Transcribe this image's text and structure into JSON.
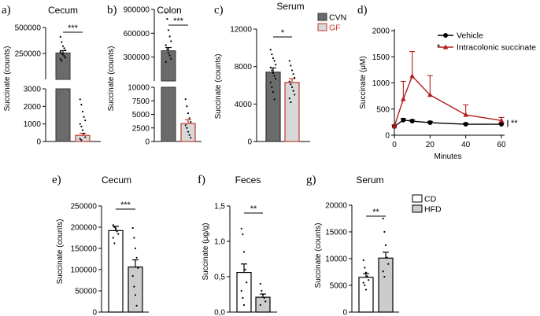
{
  "colors": {
    "cvn": "#6b6b6b",
    "gf": "#d8d8d8",
    "gf_border": "#c0392b",
    "cd": "#ffffff",
    "hfd": "#cccccc",
    "vehicle": "#000000",
    "intracolonic": "#b01c1c"
  },
  "chart_data": [
    {
      "id": "a",
      "type": "bar",
      "panel_label": "a)",
      "title": "Cecum",
      "ylabel": "Succinate (counts)",
      "axis_break": true,
      "lower_ylim": [
        0,
        3000
      ],
      "lower_ticks": [
        "0",
        "1000",
        "2000",
        "3000"
      ],
      "upper_ylim": [
        0,
        500000
      ],
      "upper_ticks": [
        "250000",
        "500000"
      ],
      "categories": [
        "CVN",
        "GF"
      ],
      "values": [
        255000,
        350
      ],
      "errors": [
        22000,
        120
      ],
      "points": [
        [
          410000,
          360000,
          320000,
          300000,
          280000,
          265000,
          250000,
          240000,
          225000,
          210000,
          195000,
          180000
        ],
        [
          2400,
          2100,
          1700,
          1400,
          1200,
          1000,
          850,
          650,
          450,
          250,
          150,
          80
        ]
      ],
      "significance": [
        {
          "pair": [
            0,
            1
          ],
          "label": "***"
        }
      ]
    },
    {
      "id": "b",
      "type": "bar",
      "panel_label": "b)",
      "title": "Colon",
      "ylabel": "Succinate (counts)",
      "axis_break": true,
      "lower_ylim": [
        0,
        10000
      ],
      "lower_ticks": [
        "0",
        "2500",
        "5000",
        "7500",
        "10000"
      ],
      "upper_ylim": [
        0,
        900000
      ],
      "upper_ticks": [
        "300000",
        "600000",
        "900000"
      ],
      "categories": [
        "CVN",
        "GF"
      ],
      "values": [
        380000,
        3300
      ],
      "errors": [
        40000,
        700
      ],
      "points": [
        [
          860000,
          780000,
          640000,
          560000,
          500000,
          450000,
          400000,
          350000,
          320000,
          280000,
          240000
        ],
        [
          7800,
          6500,
          5200,
          4300,
          3600,
          3000,
          2500,
          1800,
          1200,
          700
        ]
      ],
      "significance": [
        {
          "pair": [
            0,
            1
          ],
          "label": "***"
        }
      ]
    },
    {
      "id": "c",
      "type": "bar",
      "panel_label": "c)",
      "title": "Serum",
      "ylabel": "Succinate (counts)",
      "ylim": [
        0,
        12000
      ],
      "yticks": [
        "0",
        "4000",
        "8000",
        "12000"
      ],
      "categories": [
        "CVN",
        "GF"
      ],
      "values": [
        7400,
        6300
      ],
      "errors": [
        450,
        400
      ],
      "points": [
        [
          9800,
          9300,
          8900,
          8600,
          8200,
          7900,
          7600,
          7300,
          7000,
          6700,
          6300,
          5800,
          5300,
          4500
        ],
        [
          8600,
          8100,
          7600,
          7200,
          6800,
          6400,
          6100,
          5800,
          5400,
          5000,
          4600,
          4200
        ]
      ],
      "legend": [
        "CVN",
        "GF"
      ],
      "significance": [
        {
          "pair": [
            0,
            1
          ],
          "label": "*"
        }
      ]
    },
    {
      "id": "d",
      "type": "line",
      "panel_label": "d)",
      "title": "",
      "xlabel": "Minutes",
      "ylabel": "Succinate (μM)",
      "xlim": [
        0,
        60
      ],
      "xticks": [
        0,
        20,
        40,
        60
      ],
      "ylim": [
        0,
        2000
      ],
      "yticks": [
        0,
        500,
        1000,
        1500,
        2000
      ],
      "series": [
        {
          "name": "Vehicle",
          "x": [
            0,
            5,
            10,
            20,
            40,
            60
          ],
          "y": [
            170,
            290,
            270,
            240,
            210,
            210
          ],
          "err": [
            30,
            30,
            25,
            25,
            20,
            20
          ]
        },
        {
          "name": "Intracolonic succinate",
          "x": [
            0,
            5,
            10,
            20,
            40,
            60
          ],
          "y": [
            170,
            690,
            1130,
            770,
            390,
            280
          ],
          "err": [
            30,
            340,
            470,
            370,
            190,
            60
          ]
        }
      ],
      "annotations": [
        {
          "x": 15,
          "y": 1720,
          "label": "*"
        }
      ],
      "bracket_label": "**"
    },
    {
      "id": "e",
      "type": "bar",
      "panel_label": "e)",
      "title": "Cecum",
      "ylabel": "Succinate (counts)",
      "ylim": [
        0,
        250000
      ],
      "yticks": [
        "0",
        "50000",
        "100000",
        "150000",
        "200000",
        "250000"
      ],
      "categories": [
        "CD",
        "HFD"
      ],
      "values": [
        192000,
        106000
      ],
      "errors": [
        10000,
        17000
      ],
      "points": [
        [
          205000,
          200000,
          196000,
          190000,
          184000,
          175000,
          162000
        ],
        [
          198000,
          175000,
          150000,
          128000,
          104000,
          85000,
          60000,
          40000,
          15000
        ]
      ],
      "significance": [
        {
          "pair": [
            0,
            1
          ],
          "label": "***"
        }
      ]
    },
    {
      "id": "f",
      "type": "bar",
      "panel_label": "f)",
      "title": "Feces",
      "ylabel": "Succinate (μg/g)",
      "ylim": [
        0,
        1.5
      ],
      "yticks": [
        "0,0",
        "0,5",
        "1,0",
        "1,5"
      ],
      "categories": [
        "CD",
        "HFD"
      ],
      "values": [
        0.56,
        0.21
      ],
      "errors": [
        0.12,
        0.045
      ],
      "points": [
        [
          1.18,
          1.1,
          0.85,
          0.6,
          0.42,
          0.3,
          0.2,
          0.1
        ],
        [
          0.4,
          0.3,
          0.25,
          0.2,
          0.15,
          0.1
        ]
      ],
      "significance": [
        {
          "pair": [
            0,
            1
          ],
          "label": "**"
        }
      ]
    },
    {
      "id": "g",
      "type": "bar",
      "panel_label": "g)",
      "title": "Serum",
      "ylabel": "Succinate (counts)",
      "ylim": [
        0,
        20000
      ],
      "yticks": [
        "0",
        "5000",
        "10000",
        "15000",
        "20000"
      ],
      "categories": [
        "CD",
        "HFD"
      ],
      "values": [
        6500,
        10100
      ],
      "errors": [
        700,
        1100
      ],
      "points": [
        [
          9700,
          8300,
          7400,
          6700,
          6000,
          5500,
          5000,
          4200
        ],
        [
          17500,
          15000,
          12500,
          10200,
          9000,
          7600,
          6600
        ]
      ],
      "legend": [
        "CD",
        "HFD"
      ],
      "significance": [
        {
          "pair": [
            0,
            1
          ],
          "label": "**"
        }
      ]
    }
  ]
}
